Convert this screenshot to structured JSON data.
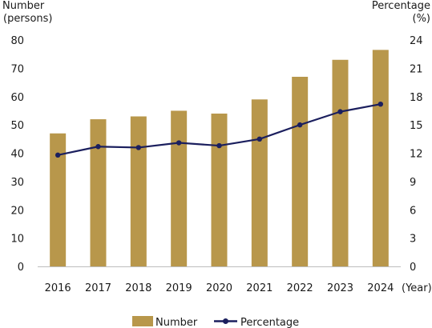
{
  "chart_data": {
    "type": "bar",
    "categories": [
      "2016",
      "2017",
      "2018",
      "2019",
      "2020",
      "2021",
      "2022",
      "2023",
      "2024"
    ],
    "x_unit": "(Year)",
    "left_axis": {
      "label_line1": "Number",
      "label_line2": "(persons)",
      "ylim": [
        0,
        80
      ],
      "ticks": [
        0,
        10,
        20,
        30,
        40,
        50,
        60,
        70,
        80
      ]
    },
    "right_axis": {
      "label_line1": "Percentage",
      "label_line2": "(%)",
      "ylim": [
        0,
        24
      ],
      "ticks": [
        0,
        3,
        6,
        9,
        12,
        15,
        18,
        21,
        24
      ]
    },
    "series": [
      {
        "name": "Number",
        "type": "bar",
        "axis": "left",
        "color": "#b8974b",
        "values": [
          47,
          52,
          53,
          55,
          54,
          59,
          67,
          73,
          76.5
        ]
      },
      {
        "name": "Percentage",
        "type": "line",
        "axis": "right",
        "color": "#1b1f5e",
        "values": [
          11.8,
          12.7,
          12.6,
          13.1,
          12.8,
          13.5,
          15.0,
          16.4,
          17.2
        ]
      }
    ],
    "grid": false,
    "legend": "bottom"
  }
}
